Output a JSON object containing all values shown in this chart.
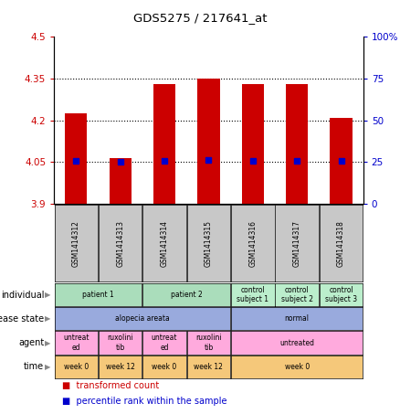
{
  "title": "GDS5275 / 217641_at",
  "samples": [
    "GSM1414312",
    "GSM1414313",
    "GSM1414314",
    "GSM1414315",
    "GSM1414316",
    "GSM1414317",
    "GSM1414318"
  ],
  "red_values": [
    4.225,
    4.065,
    4.33,
    4.35,
    4.33,
    4.33,
    4.21
  ],
  "blue_values": [
    4.055,
    4.05,
    4.055,
    4.058,
    4.055,
    4.055,
    4.055
  ],
  "ylim_left": [
    3.9,
    4.5
  ],
  "ylim_right": [
    0,
    100
  ],
  "yticks_left": [
    3.9,
    4.05,
    4.2,
    4.35,
    4.5
  ],
  "yticks_right": [
    0,
    25,
    50,
    75,
    100
  ],
  "ytick_labels_left": [
    "3.9",
    "4.05",
    "4.2",
    "4.35",
    "4.5"
  ],
  "ytick_labels_right": [
    "0",
    "25",
    "50",
    "75",
    "100%"
  ],
  "hlines": [
    4.05,
    4.2,
    4.35
  ],
  "bar_width": 0.5,
  "red_color": "#cc0000",
  "blue_color": "#0000cc",
  "annotation_rows": {
    "individual": {
      "label": "individual",
      "groups": [
        {
          "span": [
            0,
            1
          ],
          "text": "patient 1",
          "color": "#aaddbb"
        },
        {
          "span": [
            2,
            3
          ],
          "text": "patient 2",
          "color": "#aaddbb"
        },
        {
          "span": [
            4,
            4
          ],
          "text": "control\nsubject 1",
          "color": "#bbeecc"
        },
        {
          "span": [
            5,
            5
          ],
          "text": "control\nsubject 2",
          "color": "#bbeecc"
        },
        {
          "span": [
            6,
            6
          ],
          "text": "control\nsubject 3",
          "color": "#bbeecc"
        }
      ]
    },
    "disease_state": {
      "label": "disease state",
      "groups": [
        {
          "span": [
            0,
            3
          ],
          "text": "alopecia areata",
          "color": "#99aadd"
        },
        {
          "span": [
            4,
            6
          ],
          "text": "normal",
          "color": "#99aadd"
        }
      ]
    },
    "agent": {
      "label": "agent",
      "groups": [
        {
          "span": [
            0,
            0
          ],
          "text": "untreat\ned",
          "color": "#ffaadd"
        },
        {
          "span": [
            1,
            1
          ],
          "text": "ruxolini\ntib",
          "color": "#ffaadd"
        },
        {
          "span": [
            2,
            2
          ],
          "text": "untreat\ned",
          "color": "#ffaadd"
        },
        {
          "span": [
            3,
            3
          ],
          "text": "ruxolini\ntib",
          "color": "#ffaadd"
        },
        {
          "span": [
            4,
            6
          ],
          "text": "untreated",
          "color": "#ffaadd"
        }
      ]
    },
    "time": {
      "label": "time",
      "groups": [
        {
          "span": [
            0,
            0
          ],
          "text": "week 0",
          "color": "#f5c87a"
        },
        {
          "span": [
            1,
            1
          ],
          "text": "week 12",
          "color": "#f5c87a"
        },
        {
          "span": [
            2,
            2
          ],
          "text": "week 0",
          "color": "#f5c87a"
        },
        {
          "span": [
            3,
            3
          ],
          "text": "week 12",
          "color": "#f5c87a"
        },
        {
          "span": [
            4,
            6
          ],
          "text": "week 0",
          "color": "#f5c87a"
        }
      ]
    }
  },
  "annot_row_keys": [
    "individual",
    "disease_state",
    "agent",
    "time"
  ],
  "annot_row_labels": [
    "individual",
    "disease state",
    "agent",
    "time"
  ],
  "legend": [
    {
      "color": "#cc0000",
      "label": "transformed count"
    },
    {
      "color": "#0000cc",
      "label": "percentile rank within the sample"
    }
  ],
  "sample_box_color": "#c8c8c8",
  "plot_bg": "#ffffff"
}
